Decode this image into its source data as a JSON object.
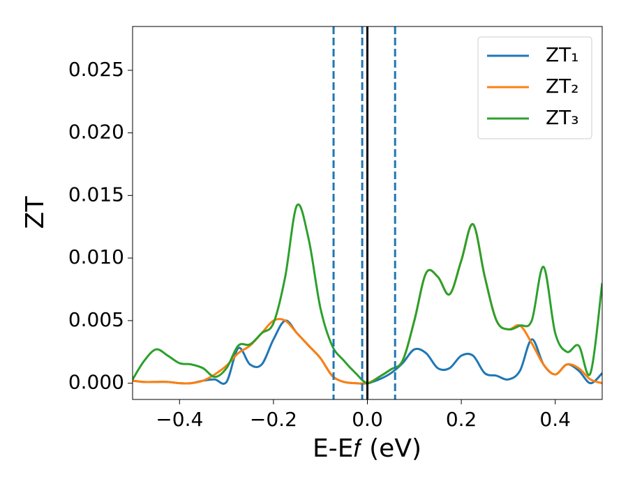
{
  "chart_data": {
    "type": "line",
    "xlabel": "E-E𝑓 (eV)",
    "ylabel": "ZT",
    "x": [
      -0.5,
      -0.475,
      -0.45,
      -0.425,
      -0.4,
      -0.375,
      -0.35,
      -0.325,
      -0.3,
      -0.275,
      -0.25,
      -0.225,
      -0.2,
      -0.175,
      -0.15,
      -0.125,
      -0.1,
      -0.075,
      -0.05,
      -0.025,
      0,
      0.025,
      0.05,
      0.075,
      0.1,
      0.125,
      0.15,
      0.175,
      0.2,
      0.225,
      0.25,
      0.275,
      0.3,
      0.325,
      0.35,
      0.375,
      0.4,
      0.425,
      0.45,
      0.475,
      0.5
    ],
    "series": [
      {
        "name": "ZT₁",
        "color": "#1f77b4",
        "values": [
          0.0002,
          0.0001,
          0.0001,
          0.0001,
          0.0,
          0.0,
          0.0002,
          0.0003,
          0.0001,
          0.0028,
          0.0015,
          0.0015,
          0.0035,
          0.005,
          0.004,
          0.003,
          0.002,
          0.0006,
          0.0001,
          0.0,
          0.0,
          0.0003,
          0.0008,
          0.0016,
          0.0027,
          0.0024,
          0.0012,
          0.0012,
          0.0022,
          0.0022,
          0.0008,
          0.0006,
          0.0003,
          0.001,
          0.0035,
          0.0015,
          0.0007,
          0.0015,
          0.001,
          0.0,
          0.0008
        ]
      },
      {
        "name": "ZT₂",
        "color": "#ff7f0e",
        "values": [
          0.0002,
          0.0001,
          0.0001,
          0.0001,
          0.0,
          0.0,
          0.0002,
          0.0007,
          0.0014,
          0.0024,
          0.003,
          0.004,
          0.005,
          0.005,
          0.004,
          0.003,
          0.002,
          0.0006,
          0.0001,
          0.0,
          0.0,
          0.0005,
          0.0011,
          0.0018,
          0.005,
          0.0088,
          0.0085,
          0.0071,
          0.0098,
          0.0127,
          0.0085,
          0.005,
          0.0043,
          0.0046,
          0.0032,
          0.0015,
          0.0007,
          0.0015,
          0.0012,
          0.0003,
          0.0
        ]
      },
      {
        "name": "ZT₃",
        "color": "#2ca02c",
        "values": [
          0.0003,
          0.0018,
          0.0027,
          0.0022,
          0.0016,
          0.0015,
          0.0012,
          0.0005,
          0.0012,
          0.003,
          0.0031,
          0.004,
          0.0048,
          0.0085,
          0.0142,
          0.0115,
          0.006,
          0.003,
          0.0018,
          0.0008,
          0.0,
          0.0005,
          0.0011,
          0.0018,
          0.005,
          0.0088,
          0.0085,
          0.0071,
          0.0098,
          0.0127,
          0.0085,
          0.005,
          0.0043,
          0.0046,
          0.005,
          0.0093,
          0.004,
          0.0025,
          0.003,
          0.0008,
          0.008
        ]
      }
    ],
    "vlines": [
      {
        "x": -0.072,
        "color": "#1f77b4",
        "style": "dashed"
      },
      {
        "x": -0.011,
        "color": "#1f77b4",
        "style": "dashed"
      },
      {
        "x": 0.059,
        "color": "#1f77b4",
        "style": "dashed"
      },
      {
        "x": 0,
        "color": "#000000",
        "style": "solid"
      }
    ],
    "xlim": [
      -0.5,
      0.5
    ],
    "ylim": [
      -0.0013,
      0.0285
    ],
    "xticks": [
      {
        "value": -0.4,
        "label": "−0.4"
      },
      {
        "value": -0.2,
        "label": "−0.2"
      },
      {
        "value": 0,
        "label": "0.0"
      },
      {
        "value": 0.2,
        "label": "0.2"
      },
      {
        "value": 0.4,
        "label": "0.4"
      }
    ],
    "yticks": [
      {
        "value": 0,
        "label": "0.000"
      },
      0.005,
      {
        "value": 0.01,
        "label": "0.010"
      },
      0.015,
      {
        "value": 0.02,
        "label": "0.020"
      },
      0.025
    ],
    "legend": "upper right"
  }
}
